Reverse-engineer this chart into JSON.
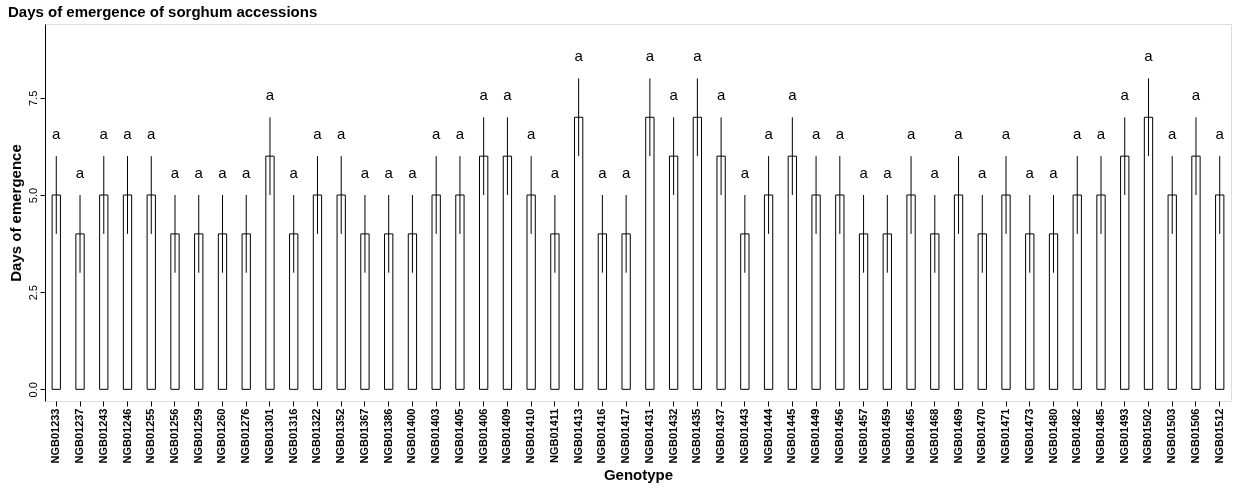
{
  "chart_data": {
    "type": "bar",
    "title": "Days of emergence of sorghum accessions",
    "xlabel": "Genotype",
    "ylabel": "Days of emergence",
    "categories": [
      "NGB01233",
      "NGB01237",
      "NGB01243",
      "NGB01246",
      "NGB01255",
      "NGB01256",
      "NGB01259",
      "NGB01260",
      "NGB01276",
      "NGB01301",
      "NGB01316",
      "NGB01322",
      "NGB01352",
      "NGB01367",
      "NGB01386",
      "NGB01400",
      "NGB01403",
      "NGB01405",
      "NGB01406",
      "NGB01409",
      "NGB01410",
      "NGB01411",
      "NGB01413",
      "NGB01416",
      "NGB01417",
      "NGB01431",
      "NGB01432",
      "NGB01435",
      "NGB01437",
      "NGB01443",
      "NGB01444",
      "NGB01445",
      "NGB01449",
      "NGB01456",
      "NGB01457",
      "NGB01459",
      "NGB01465",
      "NGB01468",
      "NGB01469",
      "NGB01470",
      "NGB01471",
      "NGB01473",
      "NGB01480",
      "NGB01482",
      "NGB01485",
      "NGB01493",
      "NGB01502",
      "NGB01503",
      "NGB01506",
      "NGB01512"
    ],
    "values": [
      5,
      4,
      5,
      5,
      5,
      4,
      4,
      4,
      4,
      6,
      4,
      5,
      5,
      4,
      4,
      4,
      5,
      5,
      6,
      6,
      5,
      4,
      7,
      4,
      4,
      7,
      6,
      7,
      6,
      4,
      5,
      6,
      5,
      5,
      4,
      4,
      5,
      4,
      5,
      4,
      5,
      4,
      4,
      5,
      5,
      6,
      7,
      5,
      6,
      5
    ],
    "errors": [
      1,
      1,
      1,
      1,
      1,
      1,
      1,
      1,
      1,
      1,
      1,
      1,
      1,
      1,
      1,
      1,
      1,
      1,
      1,
      1,
      1,
      1,
      1,
      1,
      1,
      1,
      1,
      1,
      1,
      1,
      1,
      1,
      1,
      1,
      1,
      1,
      1,
      1,
      1,
      1,
      1,
      1,
      1,
      1,
      1,
      1,
      1,
      1,
      1,
      1
    ],
    "color": "#ffffff",
    "ylim": [
      -0.3,
      9.4
    ],
    "yticks": [
      {
        "value": 0,
        "label": "0.0"
      },
      {
        "value": 2.5,
        "label": "2.5"
      },
      {
        "value": 5,
        "label": "5.0"
      },
      {
        "value": 7.5,
        "label": "7.5"
      }
    ],
    "grid": false,
    "annotations": [
      "a",
      "a",
      "a",
      "a",
      "a",
      "a",
      "a",
      "a",
      "a",
      "a",
      "a",
      "a",
      "a",
      "a",
      "a",
      "a",
      "a",
      "a",
      "a",
      "a",
      "a",
      "a",
      "a",
      "a",
      "a",
      "a",
      "a",
      "a",
      "a",
      "a",
      "a",
      "a",
      "a",
      "a",
      "a",
      "a",
      "a",
      "a",
      "a",
      "a",
      "a",
      "a",
      "a",
      "a",
      "a",
      "a",
      "a",
      "a",
      "a",
      "a"
    ]
  }
}
